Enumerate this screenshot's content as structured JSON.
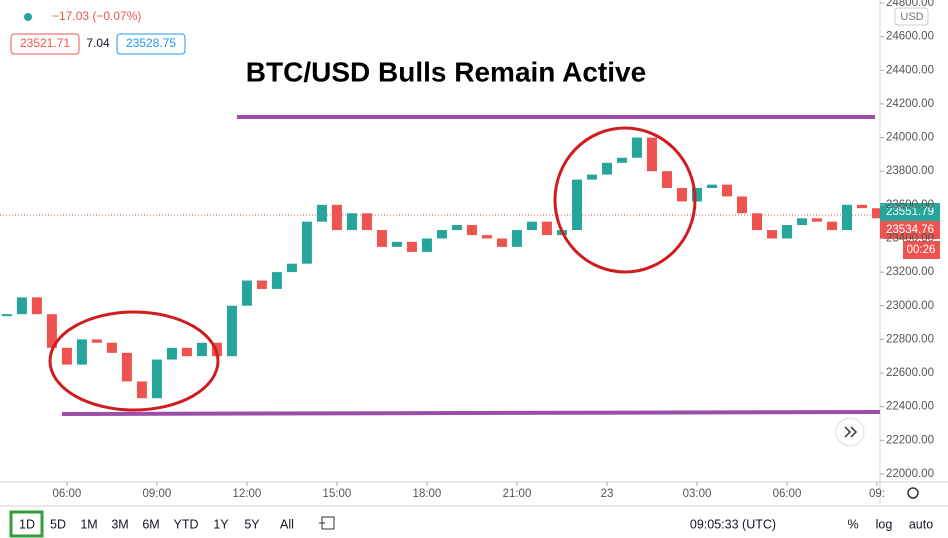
{
  "chart_data": {
    "type": "candlestick",
    "title": "BTC/USD Bulls Remain Active",
    "x": [
      4,
      4.5,
      5,
      5.5,
      6,
      6.5,
      7,
      7.5,
      8,
      8.5,
      9,
      9.5,
      10,
      10.5,
      11,
      11.5,
      12,
      12.5,
      13,
      13.5,
      14,
      14.5,
      15,
      15.5,
      16,
      16.5,
      17,
      17.5,
      18,
      18.5,
      19,
      19.5,
      20,
      20.5,
      21,
      21.5,
      22,
      22.5,
      23,
      23.5,
      24,
      24.5,
      25,
      25.5,
      26,
      26.5,
      27,
      27.5,
      28,
      28.5,
      29,
      29.5,
      30,
      30.5,
      31,
      31.5,
      32,
      32.5,
      33
    ],
    "values": [
      22950,
      23050,
      22950,
      22750,
      22650,
      22800,
      22780,
      22720,
      22550,
      22450,
      22680,
      22750,
      22700,
      22780,
      22700,
      23000,
      23150,
      23100,
      23200,
      23250,
      23500,
      23600,
      23450,
      23550,
      23450,
      23350,
      23380,
      23320,
      23400,
      23450,
      23480,
      23420,
      23400,
      23350,
      23450,
      23500,
      23420,
      23450,
      23750,
      23780,
      23850,
      23880,
      24000,
      23800,
      23700,
      23620,
      23700,
      23720,
      23650,
      23550,
      23450,
      23400,
      23480,
      23520,
      23500,
      23450,
      23600,
      23580,
      23520
    ],
    "up_color": "#26a69a",
    "down_color": "#ef5350",
    "xlim": [
      3.77,
      33.1
    ],
    "xticks": [
      {
        "value": 6,
        "label": "06:00"
      },
      {
        "value": 9,
        "label": "09:00"
      },
      {
        "value": 12,
        "label": "12:00"
      },
      {
        "value": 15,
        "label": "15:00"
      },
      {
        "value": 18,
        "label": "18:00"
      },
      {
        "value": 21,
        "label": "21:00"
      },
      {
        "value": 24,
        "label": "23"
      },
      {
        "value": 27,
        "label": "03:00"
      },
      {
        "value": 30,
        "label": "06:00"
      },
      {
        "value": 33,
        "label": "09:"
      }
    ],
    "ylim": [
      21952,
      24818
    ],
    "yticks": [
      {
        "value": 22000,
        "label": "22000.00"
      },
      {
        "value": 22200,
        "label": "22200.00"
      },
      {
        "value": 22400,
        "label": "22400.00"
      },
      {
        "value": 22600,
        "label": "22600.00"
      },
      {
        "value": 22800,
        "label": "22800.00"
      },
      {
        "value": 23000,
        "label": "23000.00"
      },
      {
        "value": 23200,
        "label": "23200.00"
      },
      {
        "value": 23400,
        "label": "23400.00"
      },
      {
        "value": 23600,
        "label": "23600.00"
      },
      {
        "value": 23800,
        "label": "23800.00"
      },
      {
        "value": 24000,
        "label": "24000.00"
      },
      {
        "value": 24200,
        "label": "24200.00"
      },
      {
        "value": 24400,
        "label": "24400.00"
      },
      {
        "value": 24600,
        "label": "24600.00"
      },
      {
        "value": 24800,
        "label": "24800.00"
      }
    ],
    "currency": "USD"
  },
  "header": {
    "change": "−17.03 (−0.07%)",
    "bid": "23521.71",
    "spread": "7.04",
    "ask": "23528.75"
  },
  "price_tags": {
    "last": "23551.79",
    "current": "23534.76",
    "countdown": "00:26"
  },
  "toolbar": {
    "ranges": [
      "1D",
      "5D",
      "1M",
      "3M",
      "6M",
      "YTD",
      "1Y",
      "5Y",
      "All"
    ],
    "clock": "09:05:33 (UTC)",
    "percent": "%",
    "log": "log",
    "auto": "auto"
  }
}
